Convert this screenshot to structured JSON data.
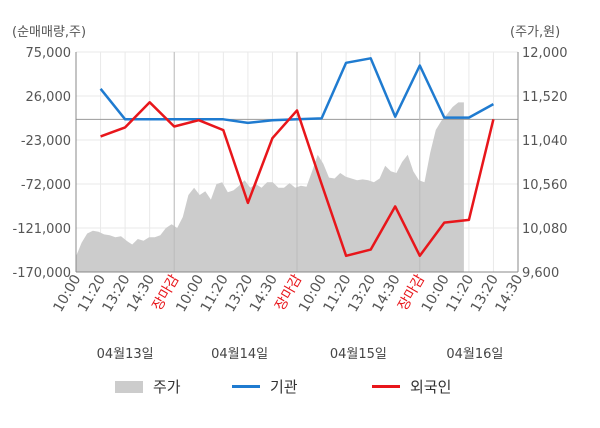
{
  "units": {
    "left": "(순매매량,주)",
    "right": "(주가,원)"
  },
  "colors": {
    "price_fill": "#cccccc",
    "institution": "#1f7bd0",
    "foreign": "#e8161b",
    "close_label": "#e8161b",
    "grid": "#e9e9e9",
    "axis": "#888888"
  },
  "legend": {
    "price": "주가",
    "institution": "기관",
    "foreign": "외국인"
  },
  "chart_data": {
    "type": "line",
    "grid": true,
    "legend_position": "bottom",
    "left_axis": {
      "label": "(순매매량,주)",
      "min": -170000,
      "max": 75000,
      "ticks": [
        "75,000",
        "26,000",
        "-23,000",
        "-72,000",
        "-121,000",
        "-170,000"
      ],
      "tick_values": [
        75000,
        26000,
        -23000,
        -72000,
        -121000,
        -170000
      ]
    },
    "right_axis": {
      "label": "(주가,원)",
      "min": 9600,
      "max": 12000,
      "ticks": [
        "12,000",
        "11,520",
        "11,040",
        "10,560",
        "10,080",
        "9,600"
      ],
      "tick_values": [
        12000,
        11520,
        11040,
        10560,
        10080,
        9600
      ]
    },
    "x_ticks": [
      "10:00",
      "11:20",
      "13:20",
      "14:30",
      "장마감",
      "10:00",
      "11:20",
      "13:20",
      "14:30",
      "장마감",
      "10:00",
      "11:20",
      "13:20",
      "14:30",
      "장마감",
      "10:00",
      "11:20",
      "13:20",
      "14:30"
    ],
    "x_tick_kinds": [
      "t",
      "t",
      "t",
      "t",
      "close",
      "t",
      "t",
      "t",
      "t",
      "close",
      "t",
      "t",
      "t",
      "t",
      "close",
      "t",
      "t",
      "t",
      "t"
    ],
    "day_labels": [
      "04월13일",
      "04월14일",
      "04월15일",
      "04월16일"
    ],
    "series": [
      {
        "name": "기관",
        "axis": "left",
        "values": [
          34000,
          0,
          0,
          0,
          0,
          0,
          -4000,
          -1000,
          0,
          1000,
          63000,
          68000,
          3000,
          60000,
          2000,
          2000,
          17000
        ]
      },
      {
        "name": "외국인",
        "axis": "left",
        "values": [
          -19000,
          -9000,
          19000,
          -8000,
          -1000,
          -12000,
          -93000,
          -21000,
          10000,
          -72000,
          -152000,
          -145000,
          -97000,
          -152000,
          -115000,
          -112000,
          0
        ]
      },
      {
        "name": "주가",
        "axis": "right",
        "type": "area",
        "values": [
          9770,
          9920,
          10020,
          10050,
          10040,
          10010,
          10000,
          9980,
          9990,
          9940,
          9900,
          9960,
          9940,
          9980,
          9980,
          10000,
          10080,
          10120,
          10080,
          10200,
          10440,
          10520,
          10440,
          10480,
          10390,
          10560,
          10580,
          10470,
          10490,
          10540,
          10600,
          10520,
          10560,
          10520,
          10580,
          10580,
          10520,
          10520,
          10570,
          10520,
          10540,
          10530,
          10700,
          10880,
          10780,
          10630,
          10620,
          10680,
          10640,
          10620,
          10600,
          10610,
          10600,
          10580,
          10620,
          10760,
          10700,
          10680,
          10800,
          10880,
          10700,
          10600,
          10580,
          10900,
          11150,
          11250,
          11320,
          11400,
          11450,
          11450
        ]
      }
    ]
  }
}
